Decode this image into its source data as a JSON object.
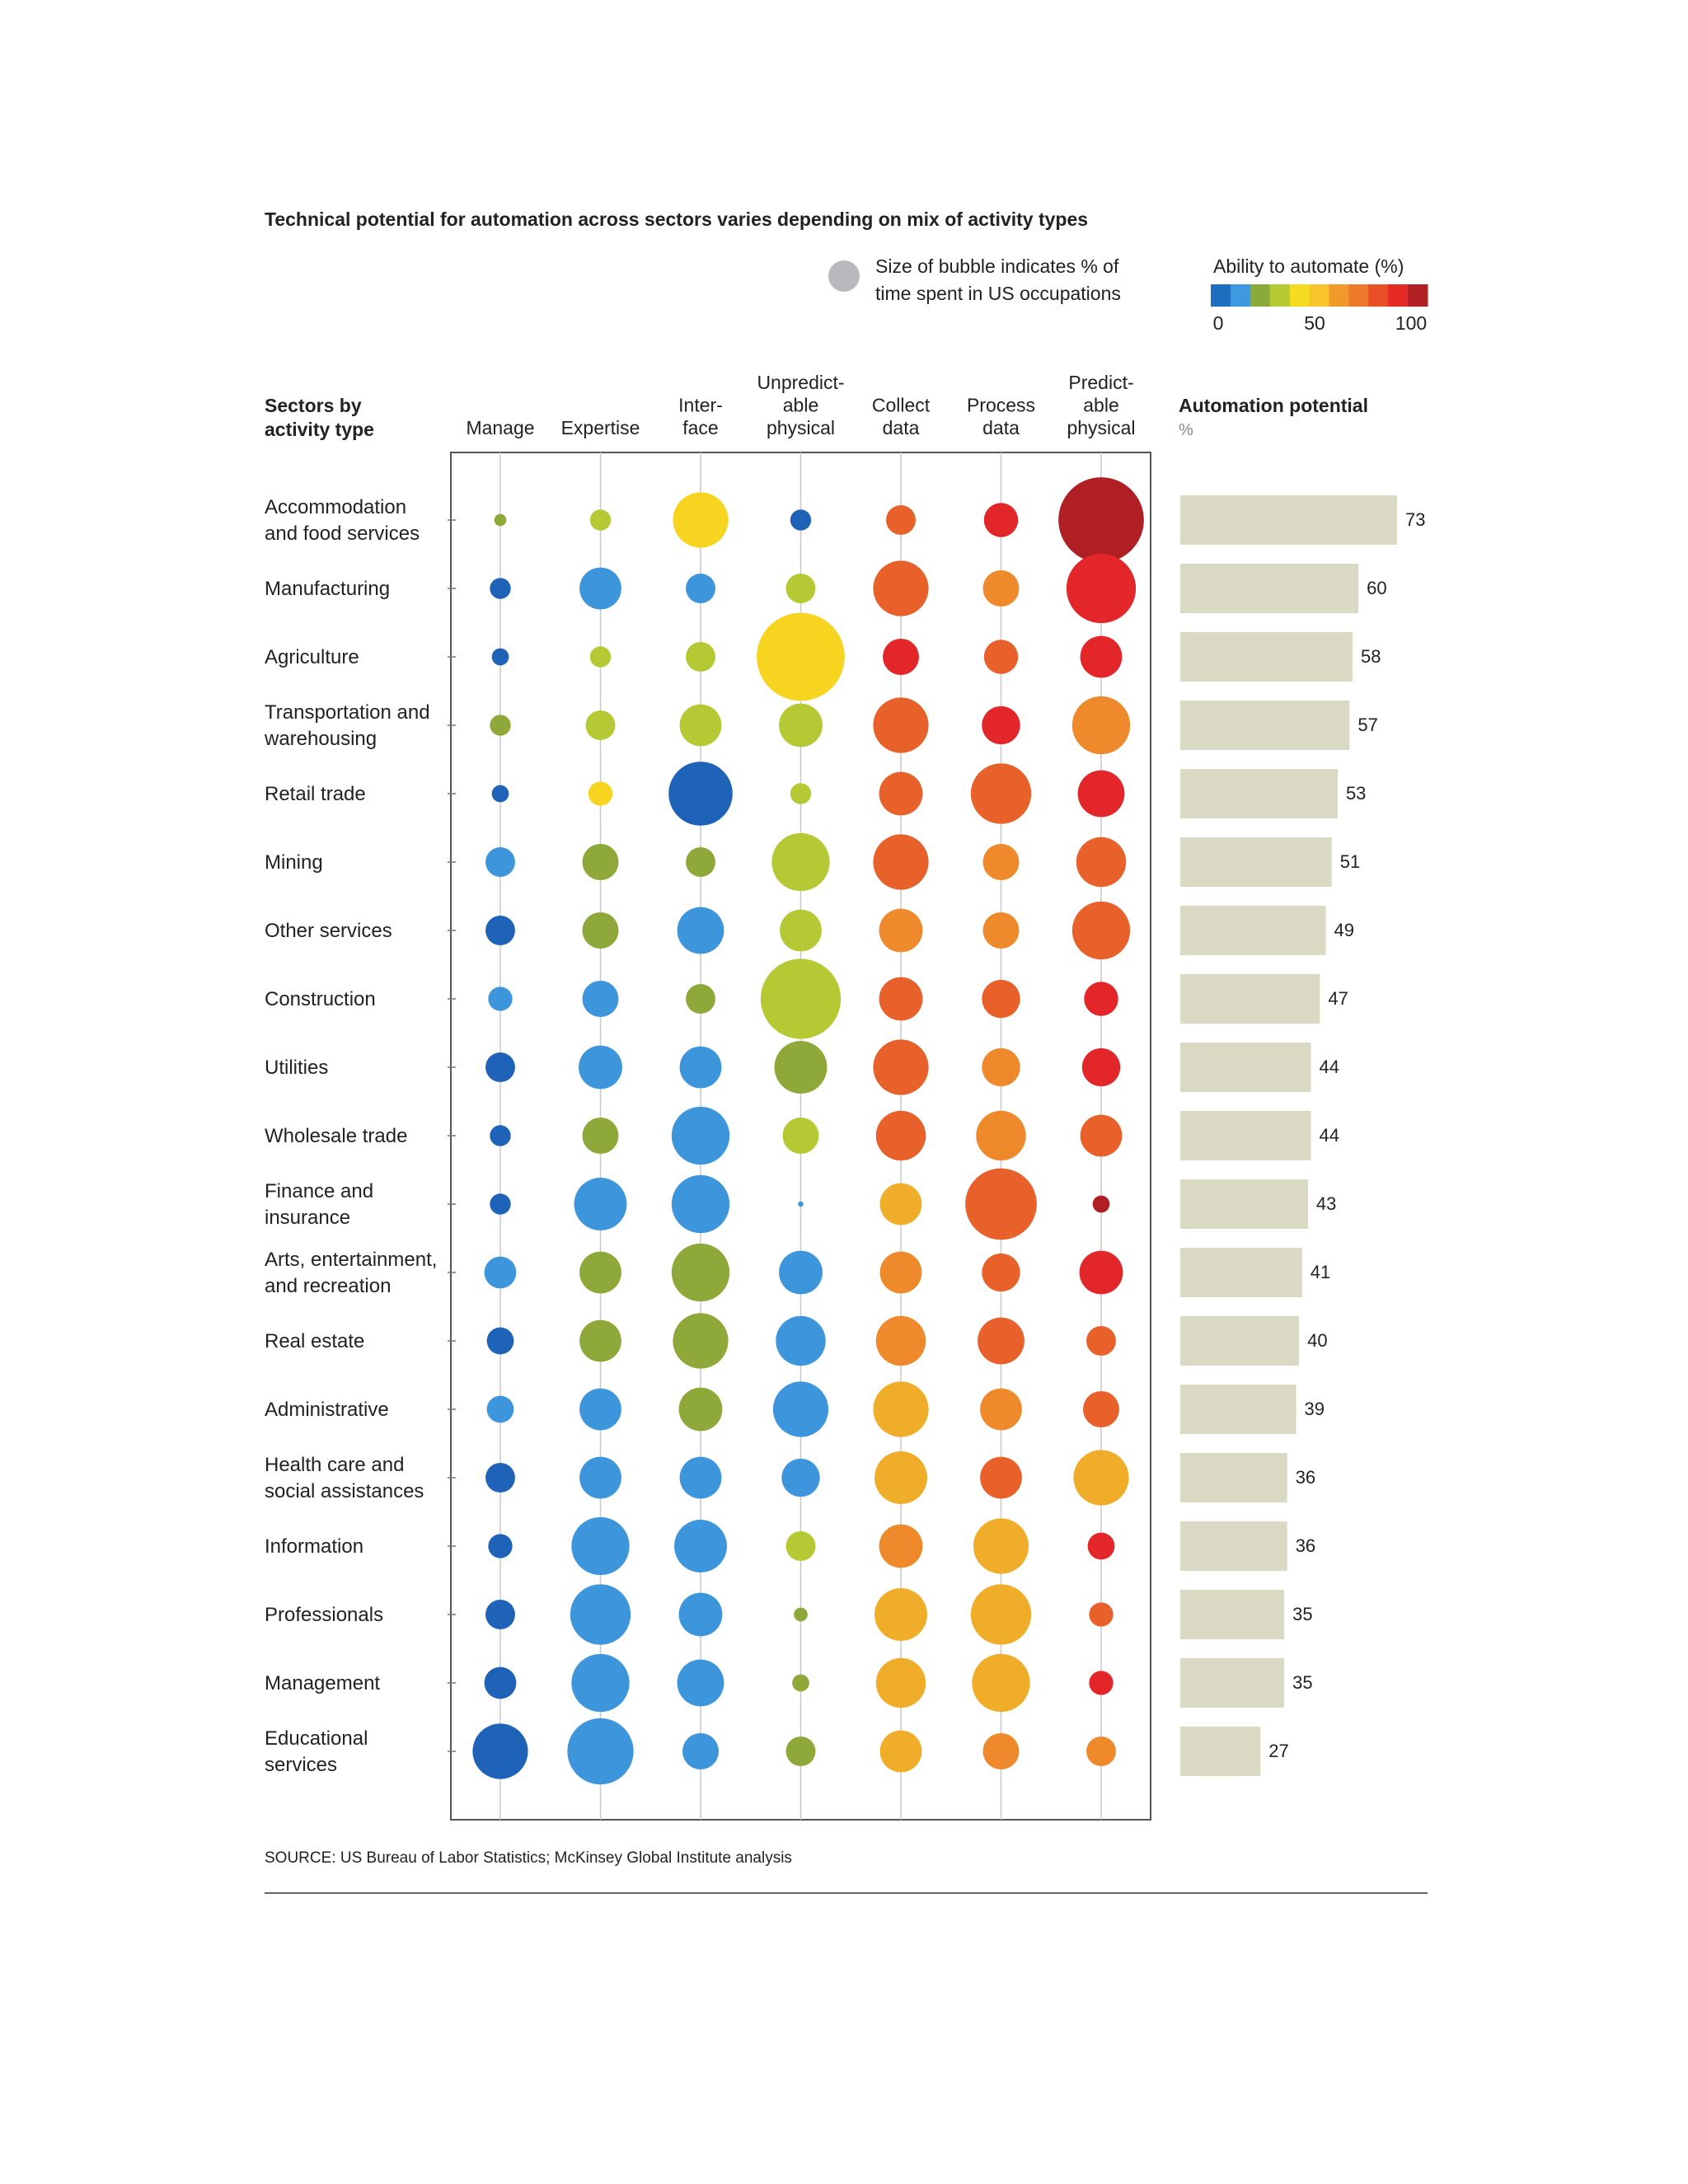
{
  "chart_data": {
    "type": "bubble_matrix",
    "title": "Technical potential for automation across sectors varies depending on mix of activity types",
    "size_legend": [
      "Size of bubble indicates % of",
      "time spent in US occupations"
    ],
    "color_legend": {
      "title": "Ability to automate (%)",
      "colors": [
        "#1f6fc0",
        "#3d9ae0",
        "#8aab3a",
        "#b5c932",
        "#f5dc20",
        "#f7c52a",
        "#f09a2a",
        "#ec7a2a",
        "#e84f27",
        "#e42b26",
        "#b22225"
      ],
      "xlim": [
        0,
        100
      ],
      "ticks": [
        0,
        50,
        100
      ]
    },
    "row_header": [
      "Sectors by",
      "activity type"
    ],
    "categories": [
      [
        "Accommodation",
        "and food services"
      ],
      [
        "Manufacturing"
      ],
      [
        "Agriculture"
      ],
      [
        "Transportation and",
        "warehousing"
      ],
      [
        "Retail trade"
      ],
      [
        "Mining"
      ],
      [
        "Other services"
      ],
      [
        "Construction"
      ],
      [
        "Utilities"
      ],
      [
        "Wholesale trade"
      ],
      [
        "Finance and",
        "insurance"
      ],
      [
        "Arts, entertainment,",
        "and recreation"
      ],
      [
        "Real estate"
      ],
      [
        "Administrative"
      ],
      [
        "Health care and",
        "social assistances"
      ],
      [
        "Information"
      ],
      [
        "Professionals"
      ],
      [
        "Management"
      ],
      [
        "Educational",
        "services"
      ]
    ],
    "series": [
      {
        "name": [
          "Manage"
        ],
        "values": [
          1,
          3,
          2,
          3,
          2,
          6,
          6,
          4,
          6,
          3,
          3,
          7,
          5,
          5,
          6,
          4,
          6,
          7,
          21
        ],
        "colors": [
          "#8fa83a",
          "#1f63b8",
          "#1f63b8",
          "#8fa83a",
          "#1f63b8",
          "#3d96dc",
          "#1f63b8",
          "#3d96dc",
          "#1f63b8",
          "#1f63b8",
          "#1f63b8",
          "#3d96dc",
          "#1f63b8",
          "#3d96dc",
          "#1f63b8",
          "#1f63b8",
          "#1f63b8",
          "#1f63b8",
          "#1f63b8"
        ]
      },
      {
        "name": [
          "Expertise"
        ],
        "values": [
          3,
          12,
          3,
          6,
          4,
          9,
          9,
          9,
          13,
          9,
          19,
          12,
          12,
          12,
          12,
          23,
          25,
          23,
          30
        ],
        "colors": [
          "#b5c935",
          "#3d96dc",
          "#b5c935",
          "#b5c935",
          "#f6d420",
          "#8fa83a",
          "#8fa83a",
          "#3d96dc",
          "#3d96dc",
          "#8fa83a",
          "#3d96dc",
          "#8fa83a",
          "#8fa83a",
          "#3d96dc",
          "#3d96dc",
          "#3d96dc",
          "#3d96dc",
          "#3d96dc",
          "#3d96dc"
        ]
      },
      {
        "name": [
          "Inter-",
          "face"
        ],
        "values": [
          21,
          6,
          6,
          12,
          28,
          6,
          15,
          6,
          12,
          23,
          23,
          23,
          21,
          13,
          12,
          19,
          13,
          15,
          9
        ],
        "colors": [
          "#f6d420",
          "#3d96dc",
          "#b5c935",
          "#b5c935",
          "#1f63b8",
          "#8fa83a",
          "#3d96dc",
          "#8fa83a",
          "#3d96dc",
          "#3d96dc",
          "#3d96dc",
          "#8fa83a",
          "#8fa83a",
          "#8fa83a",
          "#3d96dc",
          "#3d96dc",
          "#3d96dc",
          "#3d96dc",
          "#3d96dc"
        ]
      },
      {
        "name": [
          "Unpredict-",
          "able",
          "physical"
        ],
        "values": [
          3,
          6,
          53,
          13,
          3,
          23,
          12,
          44,
          19,
          9,
          0.2,
          13,
          17,
          21,
          10,
          6,
          1.3,
          2,
          6
        ],
        "colors": [
          "#1f63b8",
          "#b5c935",
          "#f6d420",
          "#b5c935",
          "#b5c935",
          "#b5c935",
          "#b5c935",
          "#b5c935",
          "#8fa83a",
          "#b5c935",
          "#3d96dc",
          "#3d96dc",
          "#3d96dc",
          "#3d96dc",
          "#3d96dc",
          "#b5c935",
          "#8fa83a",
          "#8fa83a",
          "#8fa83a"
        ]
      },
      {
        "name": [
          "Collect",
          "data"
        ],
        "values": [
          6,
          21,
          9,
          21,
          13,
          21,
          13,
          13,
          21,
          17,
          12,
          12,
          17,
          21,
          19,
          13,
          19,
          17,
          12
        ],
        "colors": [
          "#e8602a",
          "#e8602a",
          "#e3262a",
          "#e8602a",
          "#e8602a",
          "#e8602a",
          "#ef8a2c",
          "#e8602a",
          "#e8602a",
          "#e8602a",
          "#f0ad2a",
          "#ef8a2c",
          "#ef8a2c",
          "#f0ad2a",
          "#f0ad2a",
          "#ef8a2c",
          "#f0ad2a",
          "#f0ad2a",
          "#f0ad2a"
        ]
      },
      {
        "name": [
          "Process",
          "data"
        ],
        "values": [
          8,
          9,
          8,
          10,
          25,
          9,
          9,
          10,
          10,
          17,
          35,
          10,
          15,
          12,
          12,
          21,
          25,
          23,
          9
        ],
        "colors": [
          "#e3262a",
          "#ef8a2c",
          "#e8602a",
          "#e3262a",
          "#e8602a",
          "#ef8a2c",
          "#ef8a2c",
          "#e8602a",
          "#ef8a2c",
          "#ef8a2c",
          "#e8602a",
          "#e8602a",
          "#e8602a",
          "#ef8a2c",
          "#e8602a",
          "#f0ad2a",
          "#f0ad2a",
          "#f0ad2a",
          "#ef8a2c"
        ]
      },
      {
        "name": [
          "Predict-",
          "able",
          "physical"
        ],
        "values": [
          50,
          33,
          12,
          23,
          15,
          17,
          23,
          8,
          10,
          12,
          2,
          13,
          6,
          9,
          21,
          5,
          4,
          4,
          6
        ],
        "colors": [
          "#b01f24",
          "#e3262a",
          "#e3262a",
          "#ef8a2c",
          "#e3262a",
          "#e8602a",
          "#e8602a",
          "#e3262a",
          "#e3262a",
          "#e8602a",
          "#b01f24",
          "#e3262a",
          "#e8602a",
          "#e8602a",
          "#f0ad2a",
          "#e3262a",
          "#e8602a",
          "#e3262a",
          "#ef8a2c"
        ]
      }
    ],
    "bars": {
      "title": "Automation potential",
      "unit": "%",
      "color": "#d9d9c4",
      "xlim": [
        0,
        73
      ],
      "values": [
        73,
        60,
        58,
        57,
        53,
        51,
        49,
        47,
        44,
        44,
        43,
        41,
        40,
        39,
        36,
        36,
        35,
        35,
        27
      ]
    },
    "source": "SOURCE:  US Bureau of Labor Statistics; McKinsey Global Institute analysis"
  }
}
